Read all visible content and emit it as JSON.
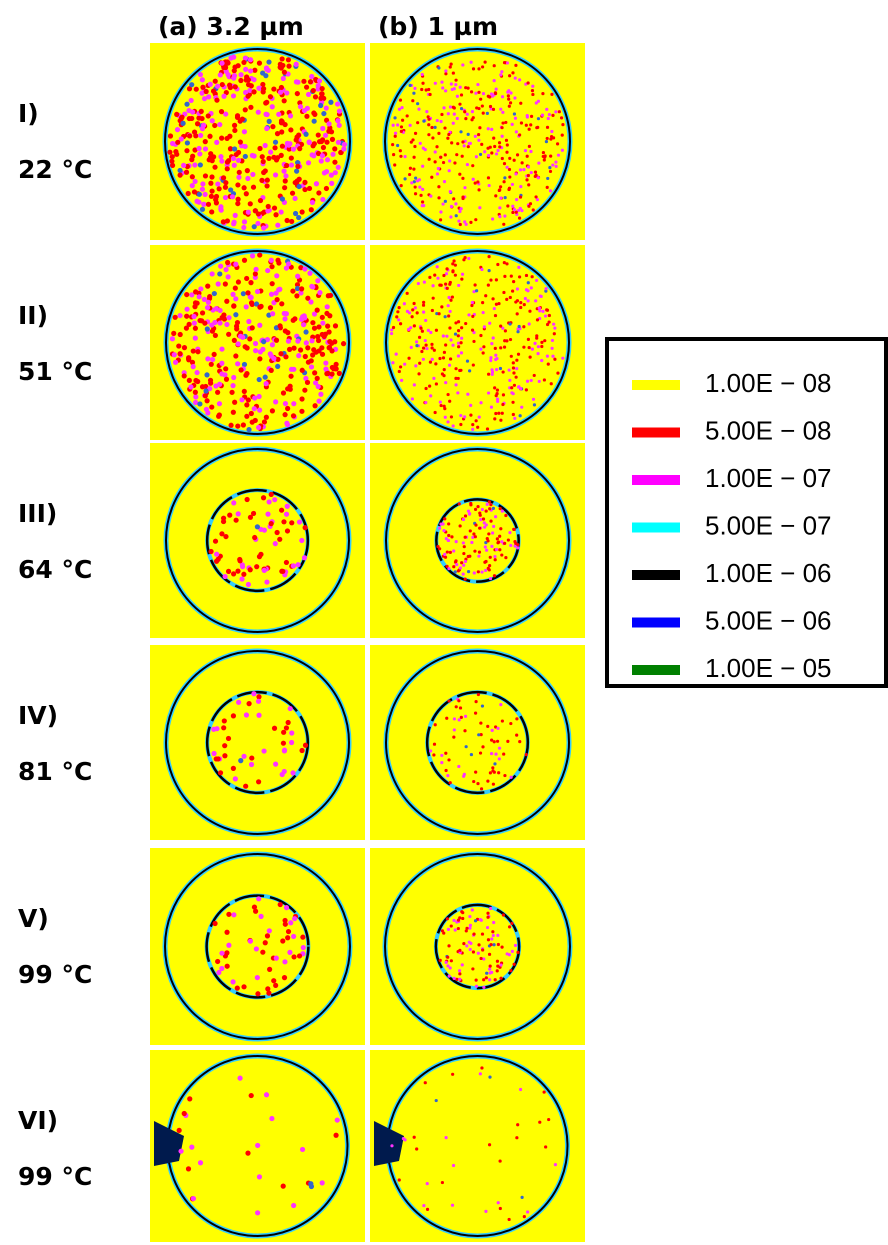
{
  "columns": [
    "(a) 3.2 µm",
    "(b) 1 µm"
  ],
  "rows": [
    {
      "label": "I)",
      "temp": "22 °C"
    },
    {
      "label": "II)",
      "temp": "51 °C"
    },
    {
      "label": "III)",
      "temp": "64 °C"
    },
    {
      "label": "IV)",
      "temp": "81 °C"
    },
    {
      "label": "V)",
      "temp": "99 °C"
    },
    {
      "label": "VI)",
      "temp": "99 °C"
    }
  ],
  "legend": [
    {
      "label": "1.00E − 08",
      "color": "#ffff00"
    },
    {
      "label": "5.00E − 08",
      "color": "#ff0000"
    },
    {
      "label": "1.00E − 07",
      "color": "#ff00ff"
    },
    {
      "label": "5.00E − 07",
      "color": "#00ffff"
    },
    {
      "label": "1.00E − 06",
      "color": "#000000"
    },
    {
      "label": "5.00E − 06",
      "color": "#0000ff"
    },
    {
      "label": "1.00E − 05",
      "color": "#008000"
    }
  ]
}
